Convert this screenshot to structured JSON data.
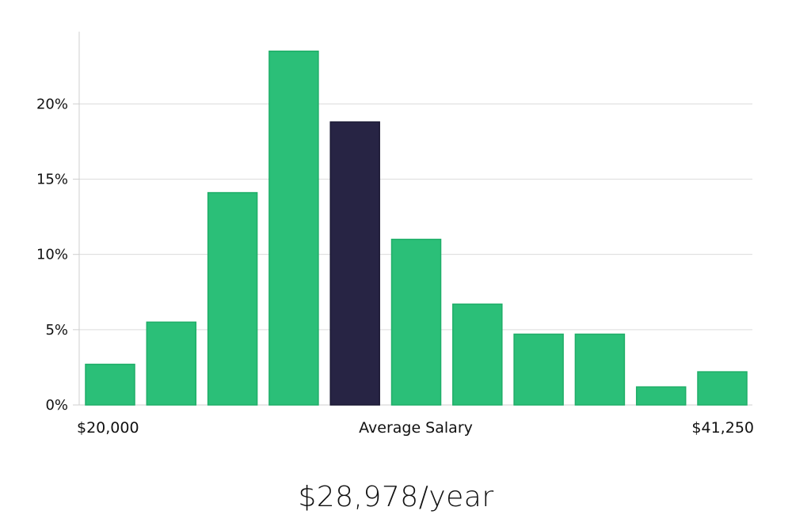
{
  "chart_data": {
    "type": "bar",
    "title": "",
    "xlabel": "Average Salary",
    "ylabel": "",
    "x_range_labels": {
      "min": "$20,000",
      "max": "$41,250"
    },
    "values": [
      2.7,
      5.5,
      14.1,
      23.5,
      18.8,
      11.0,
      6.7,
      4.7,
      4.7,
      1.2,
      2.2
    ],
    "highlight_index": 4,
    "ylim": [
      0,
      24.8
    ],
    "yticks": [
      0,
      5,
      10,
      15,
      20
    ],
    "ytick_labels": [
      "0%",
      "5%",
      "10%",
      "15%",
      "20%"
    ],
    "grid": true,
    "colors": {
      "bar": "#2bbf78",
      "bar_edge": "#1fae68",
      "highlight": "#272444",
      "grid": "#dcdcdc",
      "axis": "#cfcfcf"
    }
  },
  "summary": {
    "average_text": "$28,978/year"
  }
}
